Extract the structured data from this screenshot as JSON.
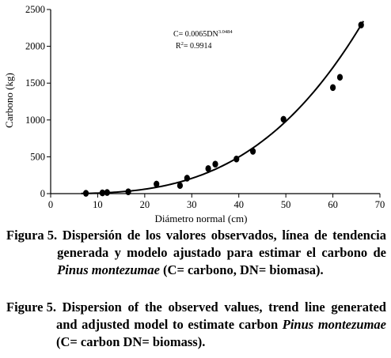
{
  "chart_data": {
    "type": "scatter",
    "xlabel": "Diámetro normal (cm)",
    "ylabel": "Carbono (kg)",
    "xlim": [
      0,
      70
    ],
    "ylim": [
      0,
      2500
    ],
    "xticks": [
      0,
      10,
      20,
      30,
      40,
      50,
      60,
      70
    ],
    "yticks": [
      0,
      500,
      1000,
      1500,
      2000,
      2500
    ],
    "xtick_labels": [
      "0",
      "10",
      "20",
      "30",
      "40",
      "50",
      "60",
      "70"
    ],
    "ytick_labels": [
      "0",
      "500",
      "1000",
      "1500",
      "2000",
      "2500"
    ],
    "grid": false,
    "series": [
      {
        "type": "scatter",
        "x": [
          7.5,
          11,
          12,
          16.5,
          22.5,
          27.5,
          29,
          33.5,
          35,
          39.5,
          43,
          49.5,
          60,
          61.5,
          66
        ],
        "y": [
          5,
          10,
          15,
          25,
          130,
          110,
          210,
          340,
          400,
          470,
          575,
          1010,
          1440,
          1580,
          2290
        ]
      },
      {
        "type": "line",
        "model": {
          "a": 0.0065,
          "b": 3.0484
        },
        "x_range": [
          6.5,
          66.5
        ]
      }
    ],
    "annotations": {
      "eq_main": "C= 0.0065DN",
      "eq_exp": "3.0484",
      "r2_prefix": "R",
      "r2_sup": "2",
      "r2_suffix": "= 0.9914"
    }
  },
  "captions": {
    "es_label": "Figura 5.",
    "es_text_1": "Dispersión de los valores observados, línea de tendencia generada y modelo ajustado para estimar el carbono de ",
    "es_species": "Pinus montezumae",
    "es_text_2": " (C= carbono, DN= biomasa).",
    "en_label": "Figure 5.",
    "en_text_1": "Dispersion of the observed values, trend line generated and adjusted model to estimate carbon ",
    "en_species": "Pinus montezumae",
    "en_text_2": " (C= carbon DN= biomass)."
  }
}
